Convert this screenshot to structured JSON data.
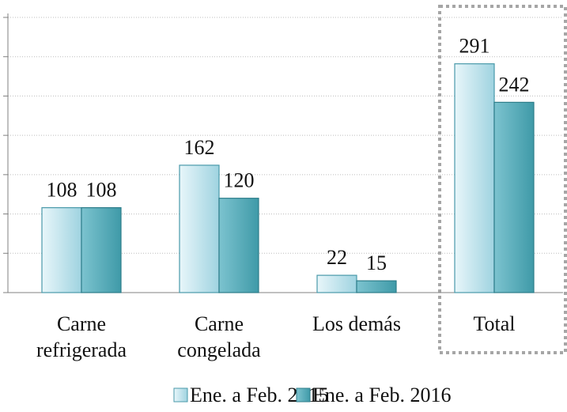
{
  "chart_data": {
    "type": "bar",
    "categories": [
      [
        "Carne",
        "refrigerada"
      ],
      [
        "Carne",
        "congelada"
      ],
      [
        "Los demás"
      ],
      [
        "Total"
      ]
    ],
    "series": [
      {
        "name": "Ene. a Feb. 2015",
        "color": "#9fd3e0",
        "values": [
          108,
          162,
          22,
          291
        ]
      },
      {
        "name": "Ene. a Feb. 2016",
        "color": "#3f9aa8",
        "values": [
          108,
          120,
          15,
          242
        ]
      }
    ],
    "ylim": [
      0,
      350
    ],
    "yticks": [
      0,
      50,
      100,
      150,
      200,
      250,
      300,
      350
    ],
    "grid": true,
    "legend": "bottom"
  }
}
